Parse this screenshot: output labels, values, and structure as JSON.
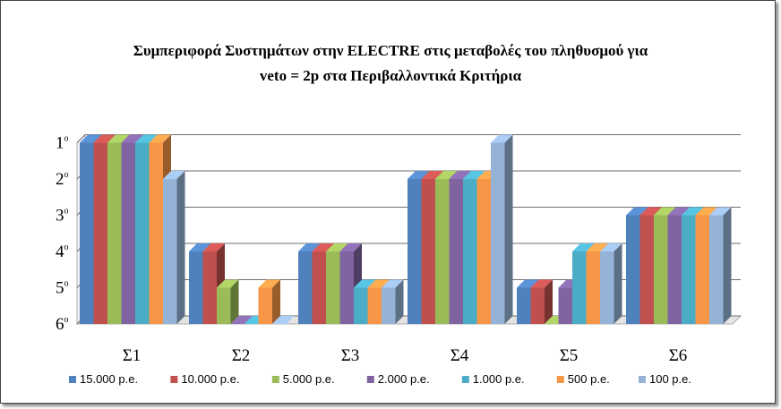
{
  "chart_data": {
    "type": "bar",
    "title_line1": "Συμπεριφορά Συστημάτων στην ELECTRE στις μεταβολές του πληθυσμού για",
    "title_line2": "veto = 2p   στα  Περιβαλλοντικά Κριτήρια",
    "categories": [
      "Σ1",
      "Σ2",
      "Σ3",
      "Σ4",
      "Σ5",
      "Σ6"
    ],
    "y_ticks": [
      {
        "value": 1,
        "num": "1",
        "sup": "ο"
      },
      {
        "value": 2,
        "num": "2",
        "sup": "ο"
      },
      {
        "value": 3,
        "num": "3",
        "sup": "ο"
      },
      {
        "value": 4,
        "num": "4",
        "sup": "ο"
      },
      {
        "value": 5,
        "num": "5",
        "sup": "ο"
      },
      {
        "value": 6,
        "num": "6",
        "sup": "ο"
      }
    ],
    "ylim": [
      1,
      6
    ],
    "y_inverted": true,
    "grid": true,
    "legend_position": "bottom",
    "series": [
      {
        "name": "15.000 p.e.",
        "color": "#4F81BD",
        "values": [
          1,
          4,
          4,
          2,
          5,
          3
        ]
      },
      {
        "name": "10.000 p.e.",
        "color": "#C0504D",
        "values": [
          1,
          4,
          4,
          2,
          5,
          3
        ]
      },
      {
        "name": "5.000 p.e.",
        "color": "#9BBB59",
        "values": [
          1,
          5,
          4,
          2,
          6,
          3
        ]
      },
      {
        "name": "2.000 p.e.",
        "color": "#8064A2",
        "values": [
          1,
          6,
          4,
          2,
          5,
          3
        ]
      },
      {
        "name": "1.000 p.e.",
        "color": "#4BACC6",
        "values": [
          1,
          6,
          5,
          2,
          4,
          3
        ]
      },
      {
        "name": "500 p.e.",
        "color": "#F79646",
        "values": [
          1,
          5,
          5,
          2,
          4,
          3
        ]
      },
      {
        "name": "100 p.e.",
        "color": "#95B3D7",
        "values": [
          2,
          6,
          5,
          1,
          4,
          3
        ]
      }
    ]
  }
}
